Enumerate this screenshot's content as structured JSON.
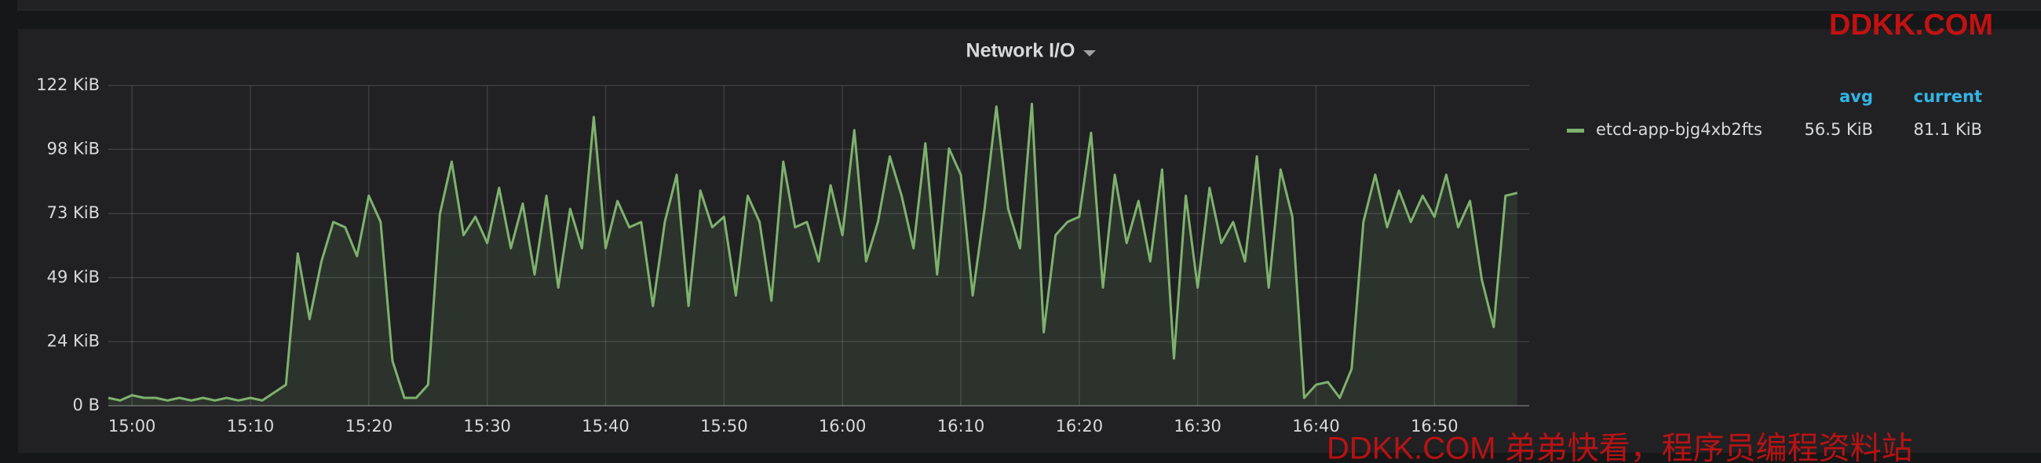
{
  "chart_data": {
    "type": "line",
    "title": "Network I/O",
    "x": [
      "14:58",
      "14:59",
      "15:00",
      "15:01",
      "15:02",
      "15:03",
      "15:04",
      "15:05",
      "15:06",
      "15:07",
      "15:08",
      "15:09",
      "15:10",
      "15:11",
      "15:12",
      "15:13",
      "15:14",
      "15:15",
      "15:16",
      "15:17",
      "15:18",
      "15:19",
      "15:20",
      "15:21",
      "15:22",
      "15:23",
      "15:24",
      "15:25",
      "15:26",
      "15:27",
      "15:28",
      "15:29",
      "15:30",
      "15:31",
      "15:32",
      "15:33",
      "15:34",
      "15:35",
      "15:36",
      "15:37",
      "15:38",
      "15:39",
      "15:40",
      "15:41",
      "15:42",
      "15:43",
      "15:44",
      "15:45",
      "15:46",
      "15:47",
      "15:48",
      "15:49",
      "15:50",
      "15:51",
      "15:52",
      "15:53",
      "15:54",
      "15:55",
      "15:56",
      "15:57",
      "15:58",
      "15:59",
      "16:00",
      "16:01",
      "16:02",
      "16:03",
      "16:04",
      "16:05",
      "16:06",
      "16:07",
      "16:08",
      "16:09",
      "16:10",
      "16:11",
      "16:12",
      "16:13",
      "16:14",
      "16:15",
      "16:16",
      "16:17",
      "16:18",
      "16:19",
      "16:20",
      "16:21",
      "16:22",
      "16:23",
      "16:24",
      "16:25",
      "16:26",
      "16:27",
      "16:28",
      "16:29",
      "16:30",
      "16:31",
      "16:32",
      "16:33",
      "16:34",
      "16:35",
      "16:36",
      "16:37",
      "16:38",
      "16:39",
      "16:40",
      "16:41",
      "16:42",
      "16:43",
      "16:44",
      "16:45",
      "16:46",
      "16:47",
      "16:48",
      "16:49",
      "16:50",
      "16:51",
      "16:52",
      "16:53",
      "16:54",
      "16:55",
      "16:56",
      "16:57"
    ],
    "series": [
      {
        "name": "etcd-app-bjg4xb2fts",
        "color": "#7eb26d",
        "values": [
          3,
          2,
          4,
          3,
          3,
          2,
          3,
          2,
          3,
          2,
          3,
          2,
          3,
          2,
          5,
          8,
          58,
          33,
          55,
          70,
          68,
          57,
          80,
          70,
          17,
          3,
          3,
          8,
          73,
          93,
          65,
          72,
          62,
          83,
          60,
          77,
          50,
          80,
          45,
          75,
          60,
          110,
          60,
          78,
          68,
          70,
          38,
          70,
          88,
          38,
          82,
          68,
          72,
          42,
          80,
          70,
          40,
          93,
          68,
          70,
          55,
          84,
          65,
          105,
          55,
          70,
          95,
          80,
          60,
          100,
          50,
          98,
          88,
          42,
          75,
          114,
          75,
          60,
          115,
          28,
          65,
          70,
          72,
          104,
          45,
          88,
          62,
          78,
          55,
          90,
          18,
          80,
          45,
          83,
          62,
          70,
          55,
          95,
          45,
          90,
          72,
          3,
          8,
          9,
          3,
          14,
          70,
          88,
          68,
          82,
          70,
          80,
          72,
          88,
          68,
          78,
          48,
          30,
          80,
          81.1
        ],
        "legend_values": [
          "56.5 KiB",
          "81.1 KiB"
        ]
      }
    ],
    "legend": {
      "columns": [
        "avg",
        "current"
      ]
    },
    "xlim": [
      "14:58",
      "16:58"
    ],
    "xticks": [
      "15:00",
      "15:10",
      "15:20",
      "15:30",
      "15:40",
      "15:50",
      "16:00",
      "16:10",
      "16:20",
      "16:30",
      "16:40",
      "16:50"
    ],
    "ylim": [
      0,
      122
    ],
    "yticks": [
      {
        "value": 0,
        "label": "0 B"
      },
      {
        "value": 24.4,
        "label": "24 KiB"
      },
      {
        "value": 48.8,
        "label": "49 KiB"
      },
      {
        "value": 73.2,
        "label": "73 KiB"
      },
      {
        "value": 97.7,
        "label": "98 KiB"
      },
      {
        "value": 122,
        "label": "122 KiB"
      }
    ],
    "grid": true
  },
  "watermarks": [
    "DDKK.COM",
    "DDKK.COM 弟弟快看，程序员编程资料站"
  ]
}
